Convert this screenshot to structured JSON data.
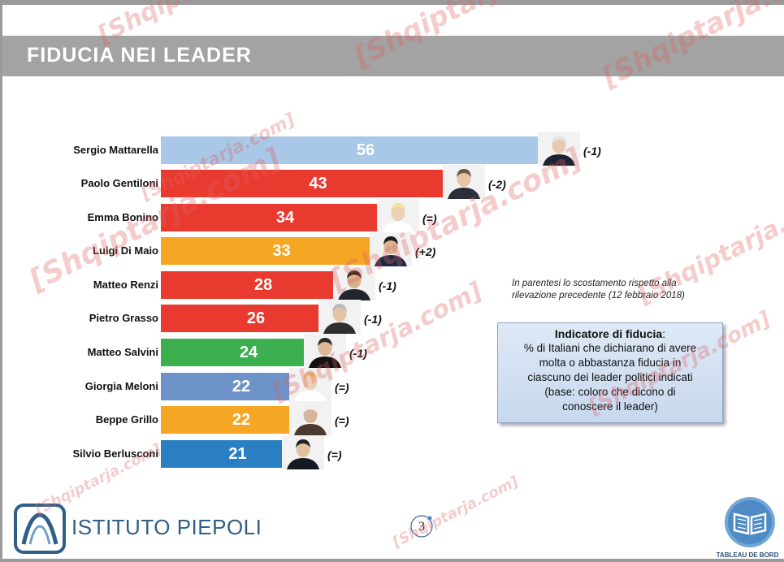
{
  "header": {
    "title": "FIDUCIA NEI LEADER"
  },
  "chart_data": {
    "type": "bar",
    "orientation": "horizontal",
    "categories": [
      "Sergio Mattarella",
      "Paolo Gentiloni",
      "Emma Bonino",
      "Luigi Di Maio",
      "Matteo Renzi",
      "Pietro Grasso",
      "Matteo Salvini",
      "Giorgia Meloni",
      "Beppe Grillo",
      "Silvio Berlusconi"
    ],
    "values": [
      56,
      43,
      34,
      33,
      28,
      26,
      24,
      22,
      22,
      21
    ],
    "value_labels": [
      "56",
      "43",
      "34",
      "33",
      "28",
      "26",
      "24",
      "22",
      "22",
      "21"
    ],
    "changes": [
      "(-1)",
      "(-2)",
      "(=)",
      "(+2)",
      "(-1)",
      "(-1)",
      "(-1)",
      "(=)",
      "(=)",
      "(=)"
    ],
    "bar_colors": [
      "#a9c8e7",
      "#e93a30",
      "#e93a30",
      "#f5a623",
      "#e93a30",
      "#e93a30",
      "#3cb04f",
      "#6e93c8",
      "#f5a623",
      "#2a7fc3"
    ],
    "portraits": [
      "portrait-mattarella",
      "portrait-gentiloni",
      "portrait-bonino",
      "portrait-di-maio",
      "portrait-renzi",
      "portrait-grasso",
      "portrait-salvini",
      "portrait-meloni",
      "portrait-grillo",
      "portrait-berlusconi"
    ],
    "xlim": [
      0,
      60
    ],
    "grid": false,
    "legend": "none"
  },
  "note": {
    "line1": "In parentesi lo scostamento rispetto alla",
    "line2": "rilevazione precedente (12 febbraio 2018)"
  },
  "info_box": {
    "title": "Indicatore di fiducia",
    "title_suffix": ":",
    "lines": [
      "% di Italiani che dichiarano di avere",
      "molta o abbastanza fiducia in",
      "ciascuno dei leader politici indicati",
      "(base: coloro che dicono di",
      "conoscere il leader)"
    ]
  },
  "footer": {
    "logo_text": "ISTITUTO PIEPOLI",
    "page_number": "3",
    "badge_label": "TABLEAU DE BORD"
  },
  "watermark": {
    "text": "[Shqiptarja.com]"
  },
  "colors": {
    "title_band": "#a3a3a3",
    "logo_blue": "#2f5f86",
    "watermark": "#e05f5f"
  }
}
